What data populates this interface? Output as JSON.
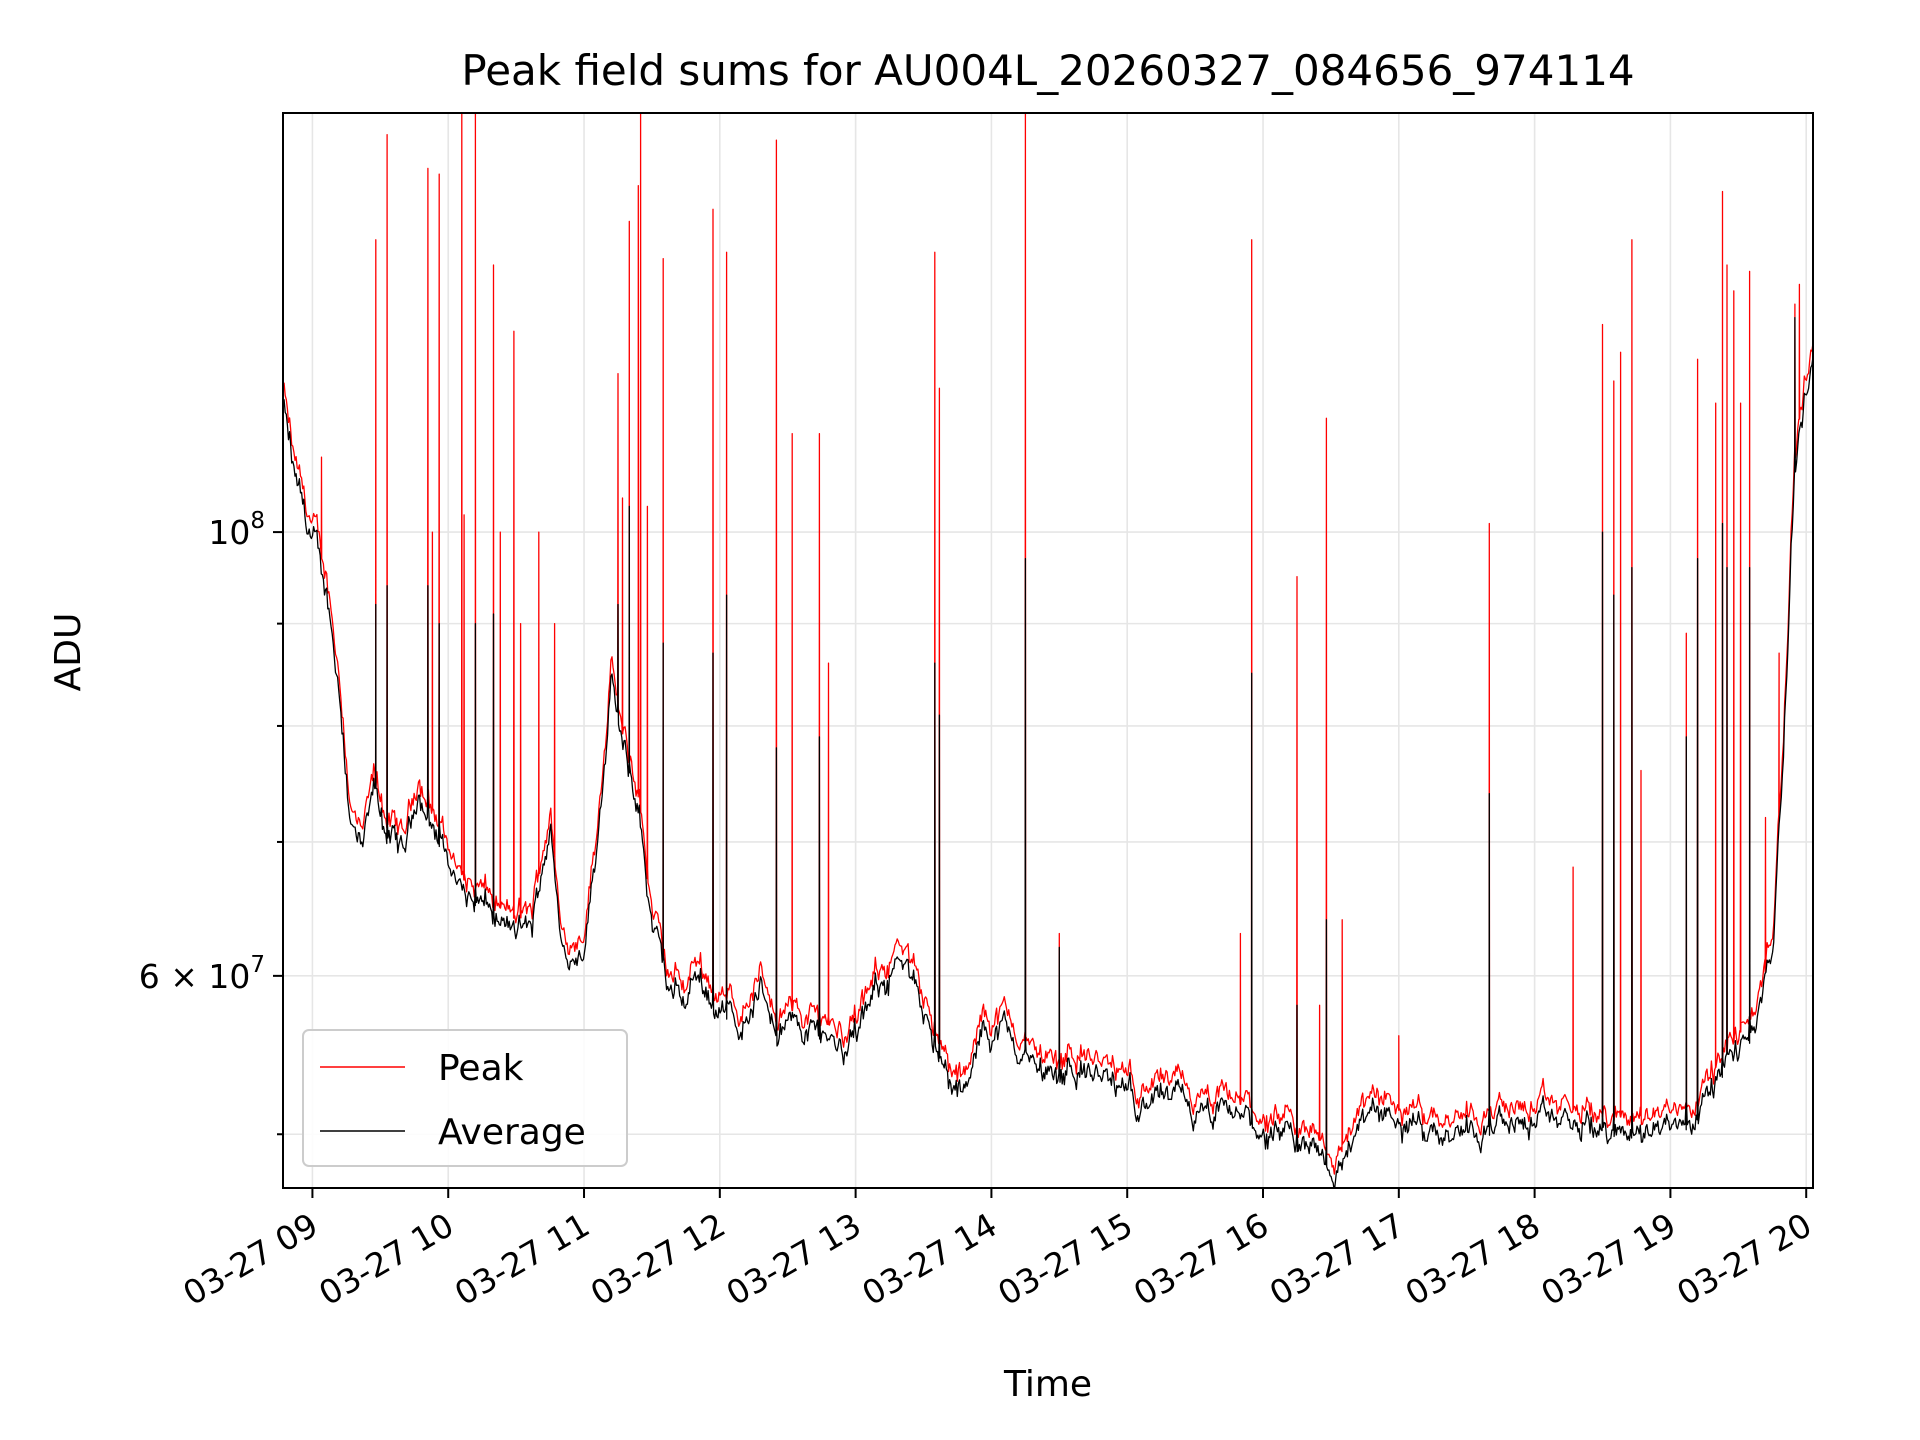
{
  "chart_data": {
    "type": "line",
    "title": "Peak field sums for AU004L_20260327_084656_974114",
    "xlabel": "Time",
    "ylabel": "ADU",
    "x_scale": "time",
    "y_scale": "log",
    "xlim": [
      "2026-03-27 08:47",
      "2026-03-27 20:03"
    ],
    "ylim": [
      47000000,
      162000000
    ],
    "x_ticks": [
      "03-27 09",
      "03-27 10",
      "03-27 11",
      "03-27 12",
      "03-27 13",
      "03-27 14",
      "03-27 15",
      "03-27 16",
      "03-27 17",
      "03-27 18",
      "03-27 19",
      "03-27 20"
    ],
    "y_major_ticks": [
      {
        "value": 60000000,
        "label": "6 × 10",
        "exponent": "7"
      },
      {
        "value": 100000000,
        "label": "10",
        "exponent": "8"
      }
    ],
    "y_minor_ticks": [
      50000000,
      70000000,
      80000000,
      90000000
    ],
    "grid": true,
    "legend_position": "lower-left",
    "legend": [
      "Peak",
      "Average"
    ],
    "colors": {
      "Peak": "#ff0000",
      "Average": "#000000"
    },
    "series": [
      {
        "name": "Peak",
        "baseline": [
          [
            "2026-03-27 08:47",
            118000000
          ],
          [
            "2026-03-27 08:52",
            108000000
          ],
          [
            "2026-03-27 08:57",
            103000000
          ],
          [
            "2026-03-27 09:02",
            99000000
          ],
          [
            "2026-03-27 09:07",
            94000000
          ],
          [
            "2026-03-27 09:12",
            85000000
          ],
          [
            "2026-03-27 09:17",
            73000000
          ],
          [
            "2026-03-27 09:22",
            70000000
          ],
          [
            "2026-03-27 09:27",
            75000000
          ],
          [
            "2026-03-27 09:33",
            72000000
          ],
          [
            "2026-03-27 09:40",
            70000000
          ],
          [
            "2026-03-27 09:47",
            76000000
          ],
          [
            "2026-03-27 09:52",
            73000000
          ],
          [
            "2026-03-27 10:00",
            70000000
          ],
          [
            "2026-03-27 10:07",
            67000000
          ],
          [
            "2026-03-27 10:15",
            66000000
          ],
          [
            "2026-03-27 10:22",
            65000000
          ],
          [
            "2026-03-27 10:30",
            64000000
          ],
          [
            "2026-03-27 10:37",
            64500000
          ],
          [
            "2026-03-27 10:45",
            73000000
          ],
          [
            "2026-03-27 10:50",
            63000000
          ],
          [
            "2026-03-27 10:55",
            62500000
          ],
          [
            "2026-03-27 11:00",
            64000000
          ],
          [
            "2026-03-27 11:05",
            70000000
          ],
          [
            "2026-03-27 11:12",
            86000000
          ],
          [
            "2026-03-27 11:18",
            78000000
          ],
          [
            "2026-03-27 11:24",
            74000000
          ],
          [
            "2026-03-27 11:30",
            65000000
          ],
          [
            "2026-03-27 11:37",
            60000000
          ],
          [
            "2026-03-27 11:45",
            59500000
          ],
          [
            "2026-03-27 11:50",
            61500000
          ],
          [
            "2026-03-27 11:55",
            60000000
          ],
          [
            "2026-03-27 12:00",
            58500000
          ],
          [
            "2026-03-27 12:10",
            58000000
          ],
          [
            "2026-03-27 12:18",
            60000000
          ],
          [
            "2026-03-27 12:25",
            58000000
          ],
          [
            "2026-03-27 12:35",
            57500000
          ],
          [
            "2026-03-27 12:45",
            57500000
          ],
          [
            "2026-03-27 12:55",
            56500000
          ],
          [
            "2026-03-27 13:05",
            58000000
          ],
          [
            "2026-03-27 13:12",
            61000000
          ],
          [
            "2026-03-27 13:18",
            62000000
          ],
          [
            "2026-03-27 13:25",
            60000000
          ],
          [
            "2026-03-27 13:32",
            59000000
          ],
          [
            "2026-03-27 13:38",
            55000000
          ],
          [
            "2026-03-27 13:45",
            53000000
          ],
          [
            "2026-03-27 13:50",
            53500000
          ],
          [
            "2026-03-27 13:57",
            57500000
          ],
          [
            "2026-03-27 14:05",
            57500000
          ],
          [
            "2026-03-27 14:12",
            56000000
          ],
          [
            "2026-03-27 14:20",
            55000000
          ],
          [
            "2026-03-27 14:30",
            54500000
          ],
          [
            "2026-03-27 14:35",
            55500000
          ],
          [
            "2026-03-27 14:45",
            54500000
          ],
          [
            "2026-03-27 14:55",
            53500000
          ],
          [
            "2026-03-27 15:05",
            53000000
          ],
          [
            "2026-03-27 15:15",
            53000000
          ],
          [
            "2026-03-27 15:25",
            52500000
          ],
          [
            "2026-03-27 15:35",
            51500000
          ],
          [
            "2026-03-27 15:45",
            52000000
          ],
          [
            "2026-03-27 15:55",
            51500000
          ],
          [
            "2026-03-27 16:05",
            50500000
          ],
          [
            "2026-03-27 16:15",
            50000000
          ],
          [
            "2026-03-27 16:25",
            50000000
          ],
          [
            "2026-03-27 16:32",
            48500000
          ],
          [
            "2026-03-27 16:40",
            51000000
          ],
          [
            "2026-03-27 16:50",
            52000000
          ],
          [
            "2026-03-27 17:00",
            51500000
          ],
          [
            "2026-03-27 17:15",
            51500000
          ],
          [
            "2026-03-27 17:30",
            51500000
          ],
          [
            "2026-03-27 17:45",
            51500000
          ],
          [
            "2026-03-27 18:00",
            51500000
          ],
          [
            "2026-03-27 18:15",
            51500000
          ],
          [
            "2026-03-27 18:30",
            51000000
          ],
          [
            "2026-03-27 18:45",
            51000000
          ],
          [
            "2026-03-27 19:00",
            51500000
          ],
          [
            "2026-03-27 19:10",
            52000000
          ],
          [
            "2026-03-27 19:20",
            54000000
          ],
          [
            "2026-03-27 19:30",
            56000000
          ],
          [
            "2026-03-27 19:38",
            58000000
          ],
          [
            "2026-03-27 19:45",
            62000000
          ],
          [
            "2026-03-27 19:50",
            80000000
          ],
          [
            "2026-03-27 19:55",
            110000000
          ],
          [
            "2026-03-27 20:00",
            120000000
          ],
          [
            "2026-03-27 20:03",
            124000000
          ]
        ],
        "spikes": [
          [
            "2026-03-27 09:04",
            109000000
          ],
          [
            "2026-03-27 09:28",
            140000000
          ],
          [
            "2026-03-27 09:33",
            158000000
          ],
          [
            "2026-03-27 09:51",
            152000000
          ],
          [
            "2026-03-27 09:53",
            100000000
          ],
          [
            "2026-03-27 09:56",
            151000000
          ],
          [
            "2026-03-27 10:06",
            162000000
          ],
          [
            "2026-03-27 10:07",
            102000000
          ],
          [
            "2026-03-27 10:12",
            162000000
          ],
          [
            "2026-03-27 10:20",
            136000000
          ],
          [
            "2026-03-27 10:23",
            100000000
          ],
          [
            "2026-03-27 10:29",
            126000000
          ],
          [
            "2026-03-27 10:32",
            90000000
          ],
          [
            "2026-03-27 10:40",
            100000000
          ],
          [
            "2026-03-27 10:47",
            90000000
          ],
          [
            "2026-03-27 11:15",
            120000000
          ],
          [
            "2026-03-27 11:17",
            104000000
          ],
          [
            "2026-03-27 11:20",
            143000000
          ],
          [
            "2026-03-27 11:24",
            149000000
          ],
          [
            "2026-03-27 11:25",
            162000000
          ],
          [
            "2026-03-27 11:28",
            103000000
          ],
          [
            "2026-03-27 11:35",
            137000000
          ],
          [
            "2026-03-27 11:57",
            145000000
          ],
          [
            "2026-03-27 12:03",
            138000000
          ],
          [
            "2026-03-27 12:25",
            157000000
          ],
          [
            "2026-03-27 12:32",
            112000000
          ],
          [
            "2026-03-27 12:44",
            112000000
          ],
          [
            "2026-03-27 12:48",
            86000000
          ],
          [
            "2026-03-27 13:35",
            138000000
          ],
          [
            "2026-03-27 13:37",
            118000000
          ],
          [
            "2026-03-27 14:15",
            162000000
          ],
          [
            "2026-03-27 14:30",
            63000000
          ],
          [
            "2026-03-27 15:50",
            63000000
          ],
          [
            "2026-03-27 15:55",
            140000000
          ],
          [
            "2026-03-27 16:15",
            95000000
          ],
          [
            "2026-03-27 16:25",
            58000000
          ],
          [
            "2026-03-27 16:28",
            114000000
          ],
          [
            "2026-03-27 16:35",
            64000000
          ],
          [
            "2026-03-27 17:00",
            56000000
          ],
          [
            "2026-03-27 17:40",
            101000000
          ],
          [
            "2026-03-27 18:17",
            68000000
          ],
          [
            "2026-03-27 18:30",
            127000000
          ],
          [
            "2026-03-27 18:35",
            119000000
          ],
          [
            "2026-03-27 18:38",
            123000000
          ],
          [
            "2026-03-27 18:43",
            140000000
          ],
          [
            "2026-03-27 18:47",
            76000000
          ],
          [
            "2026-03-27 19:07",
            89000000
          ],
          [
            "2026-03-27 19:12",
            122000000
          ],
          [
            "2026-03-27 19:20",
            116000000
          ],
          [
            "2026-03-27 19:23",
            148000000
          ],
          [
            "2026-03-27 19:25",
            136000000
          ],
          [
            "2026-03-27 19:28",
            132000000
          ],
          [
            "2026-03-27 19:31",
            116000000
          ],
          [
            "2026-03-27 19:35",
            135000000
          ],
          [
            "2026-03-27 19:42",
            72000000
          ],
          [
            "2026-03-27 19:48",
            87000000
          ],
          [
            "2026-03-27 19:55",
            130000000
          ],
          [
            "2026-03-27 19:57",
            133000000
          ]
        ]
      },
      {
        "name": "Average",
        "baseline_offset": 0.985,
        "spikes": [
          [
            "2026-03-27 09:28",
            92000000
          ],
          [
            "2026-03-27 09:33",
            94000000
          ],
          [
            "2026-03-27 09:51",
            94000000
          ],
          [
            "2026-03-27 09:56",
            90000000
          ],
          [
            "2026-03-27 10:12",
            90000000
          ],
          [
            "2026-03-27 10:20",
            91000000
          ],
          [
            "2026-03-27 11:15",
            92000000
          ],
          [
            "2026-03-27 11:20",
            103000000
          ],
          [
            "2026-03-27 11:35",
            88000000
          ],
          [
            "2026-03-27 11:57",
            87000000
          ],
          [
            "2026-03-27 12:03",
            93000000
          ],
          [
            "2026-03-27 12:25",
            78000000
          ],
          [
            "2026-03-27 12:44",
            79000000
          ],
          [
            "2026-03-27 13:35",
            86000000
          ],
          [
            "2026-03-27 13:37",
            81000000
          ],
          [
            "2026-03-27 14:15",
            97000000
          ],
          [
            "2026-03-27 14:30",
            62000000
          ],
          [
            "2026-03-27 15:55",
            85000000
          ],
          [
            "2026-03-27 16:15",
            58000000
          ],
          [
            "2026-03-27 16:28",
            64000000
          ],
          [
            "2026-03-27 17:40",
            74000000
          ],
          [
            "2026-03-27 18:30",
            100000000
          ],
          [
            "2026-03-27 18:35",
            93000000
          ],
          [
            "2026-03-27 18:43",
            96000000
          ],
          [
            "2026-03-27 19:07",
            79000000
          ],
          [
            "2026-03-27 19:12",
            97000000
          ],
          [
            "2026-03-27 19:23",
            101000000
          ],
          [
            "2026-03-27 19:25",
            96000000
          ],
          [
            "2026-03-27 19:35",
            96000000
          ],
          [
            "2026-03-27 19:55",
            128000000
          ]
        ]
      }
    ]
  }
}
